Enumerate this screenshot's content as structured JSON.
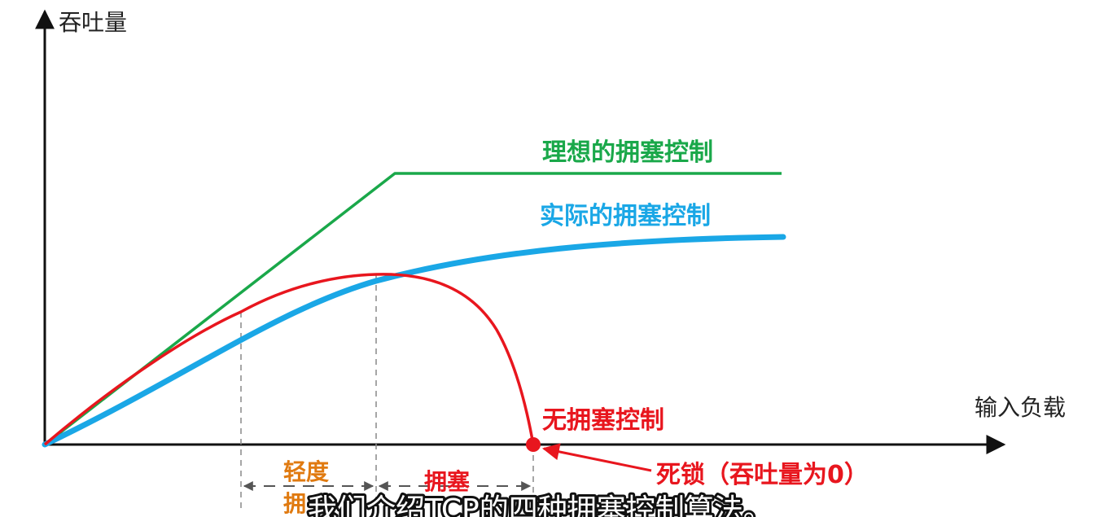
{
  "axes": {
    "y_label": "吞吐量",
    "x_label": "输入负载"
  },
  "curves": {
    "ideal": {
      "label": "理想的拥塞控制",
      "color": "#1aa84a"
    },
    "actual": {
      "label": "实际的拥塞控制",
      "color": "#1aa7e6"
    },
    "none": {
      "label": "无拥塞控制",
      "color": "#e8161e"
    }
  },
  "annotations": {
    "deadlock": {
      "label": "死锁（吞吐量为0）",
      "color": "#e8161e"
    },
    "light_congestion": {
      "label_line1": "轻度",
      "label_line2": "拥",
      "color": "#e07a10"
    },
    "congestion": {
      "label": "拥塞",
      "color": "#e8161e"
    }
  },
  "subtitle": {
    "text": "我们介绍TCP的四种拥塞控制算法。"
  },
  "colors": {
    "axis": "#111111",
    "guide": "#888888"
  }
}
